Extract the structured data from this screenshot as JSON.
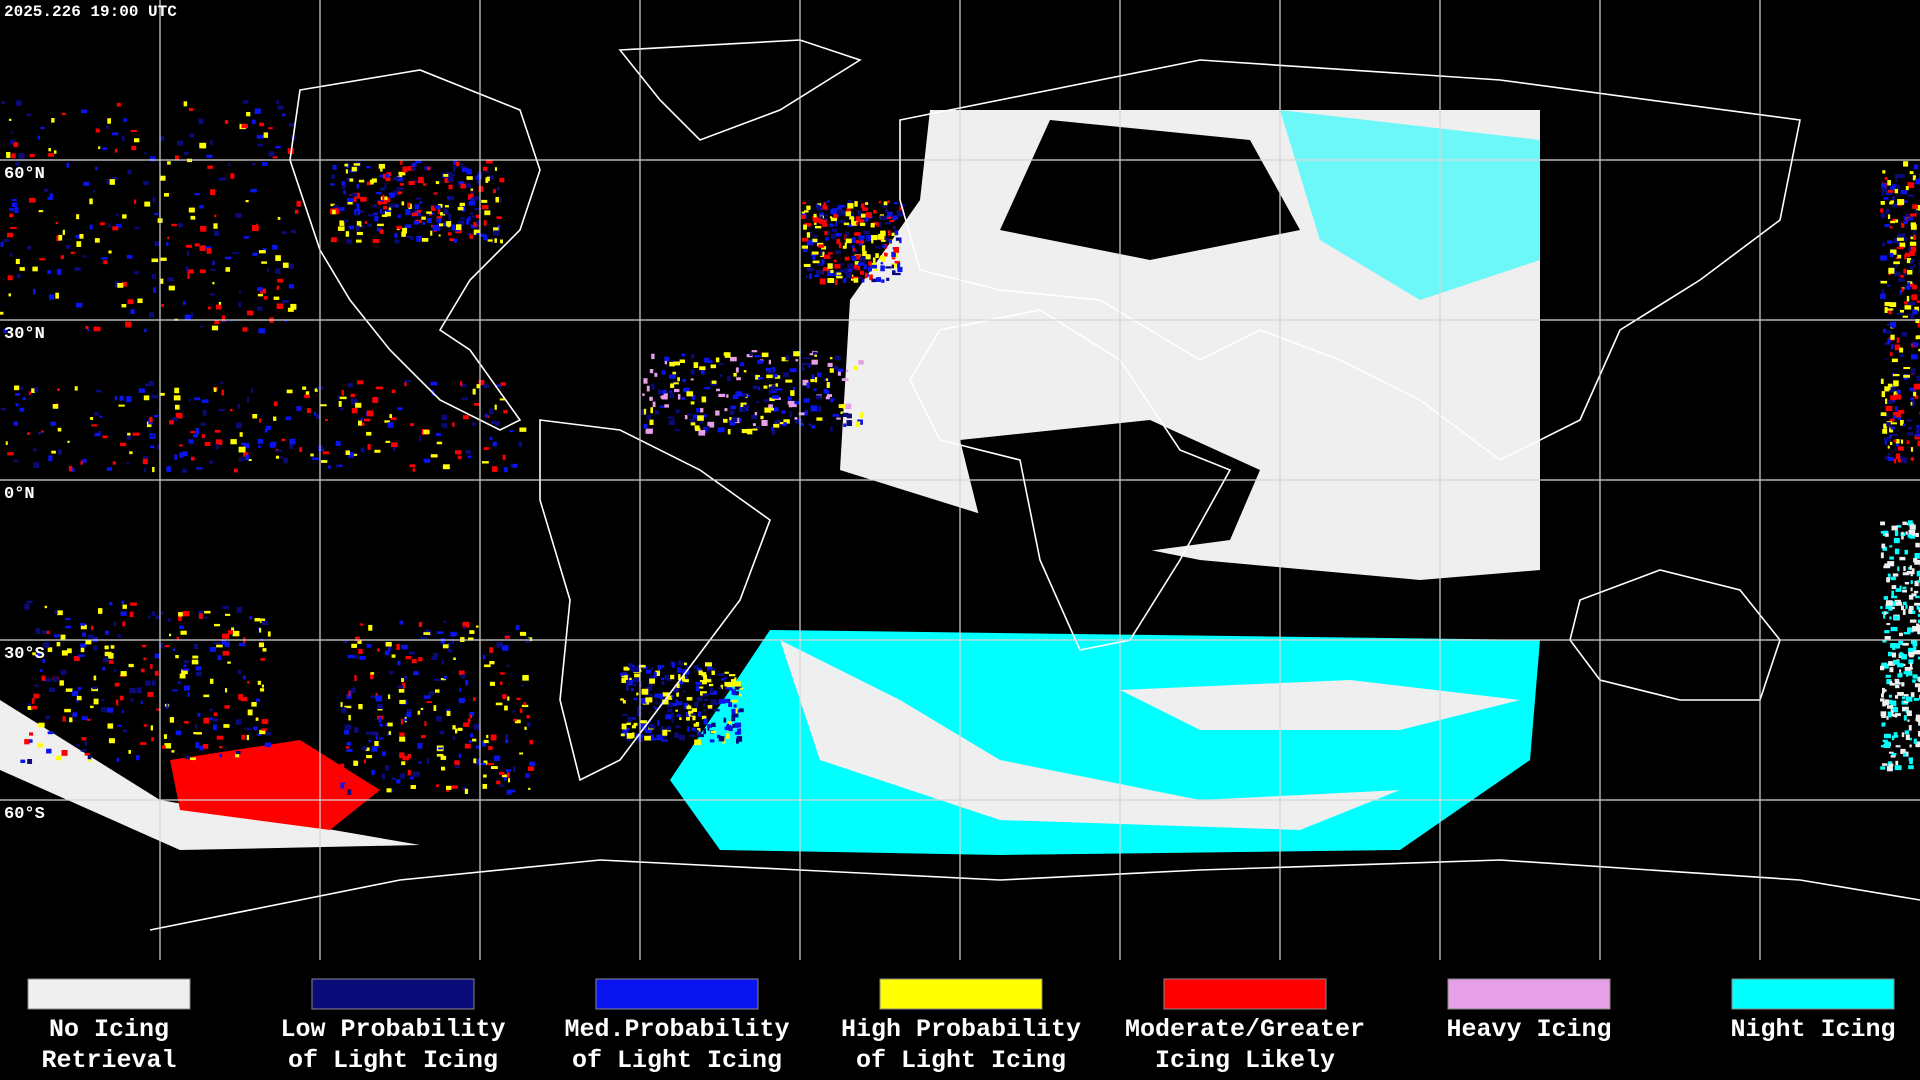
{
  "header": {
    "timestamp": "2025.226 19:00 UTC"
  },
  "map": {
    "latitude_labels": [
      "60°N",
      "30°N",
      "0°N",
      "30°S",
      "60°S"
    ]
  },
  "legend": {
    "items": [
      {
        "color": "#efefef",
        "lines": [
          "No Icing",
          "Retrieval"
        ]
      },
      {
        "color": "#0a0a78",
        "lines": [
          "Low Probability",
          "of Light Icing"
        ]
      },
      {
        "color": "#0a14f0",
        "lines": [
          "Med.Probability",
          "of Light Icing"
        ]
      },
      {
        "color": "#ffff00",
        "lines": [
          "High Probability",
          "of Light Icing"
        ]
      },
      {
        "color": "#ff0000",
        "lines": [
          "Moderate/Greater",
          "Icing Likely"
        ]
      },
      {
        "color": "#e6a0e6",
        "lines": [
          "Heavy Icing"
        ]
      },
      {
        "color": "#00ffff",
        "lines": [
          "Night Icing"
        ]
      }
    ]
  }
}
